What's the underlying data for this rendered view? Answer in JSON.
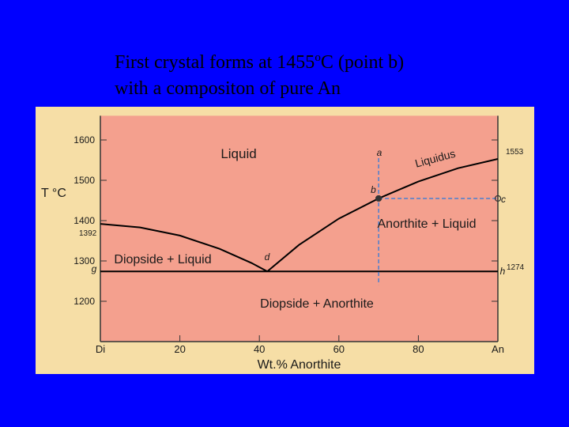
{
  "slide": {
    "title_line1": [
      "First crystal forms at 1455",
      "o",
      "C (point b)"
    ],
    "title_line2": "with a compositon of pure An"
  },
  "chart_data": {
    "type": "line",
    "xlabel": "Wt.% Anorthite",
    "ylabel": "T °C",
    "xlim": [
      0,
      100
    ],
    "ylim": [
      1100,
      1660
    ],
    "xticks": [
      {
        "value": 0,
        "label": "Di"
      },
      20,
      40,
      60,
      80,
      {
        "value": 100,
        "label": "An"
      }
    ],
    "yticks": [
      1200,
      1300,
      1400,
      1500,
      1600
    ],
    "series": [
      {
        "x": [
          0,
          10,
          20,
          30,
          38,
          42
        ],
        "values": [
          1392,
          1383,
          1363,
          1330,
          1295,
          1274
        ],
        "color": "#000000",
        "dash": false
      },
      {
        "x": [
          42,
          50,
          60,
          70,
          80,
          90,
          100
        ],
        "values": [
          1274,
          1340,
          1405,
          1455,
          1497,
          1530,
          1553
        ],
        "color": "#000000",
        "dash": false
      },
      {
        "x": [
          0,
          100
        ],
        "values": [
          1274,
          1274
        ],
        "color": "#000000",
        "dash": false
      },
      {
        "x": [
          70,
          70
        ],
        "values": [
          1555,
          1241
        ],
        "color": "#4a7fd0",
        "dash": true
      },
      {
        "x": [
          70,
          100
        ],
        "values": [
          1455,
          1455
        ],
        "color": "#4a7fd0",
        "dash": true
      }
    ],
    "points": [
      {
        "label": "b",
        "x": 70,
        "y": 1455
      },
      {
        "label": "c",
        "x": 100,
        "y": 1455
      }
    ],
    "temperature_labels": [
      1392,
      1274,
      1553
    ],
    "annotations": [
      "Liquid",
      "Liquidus",
      "Anorthite + Liquid",
      "Diopside + Liquid",
      "Diopside + Anorthite",
      "a",
      "d",
      "g",
      "h"
    ]
  }
}
